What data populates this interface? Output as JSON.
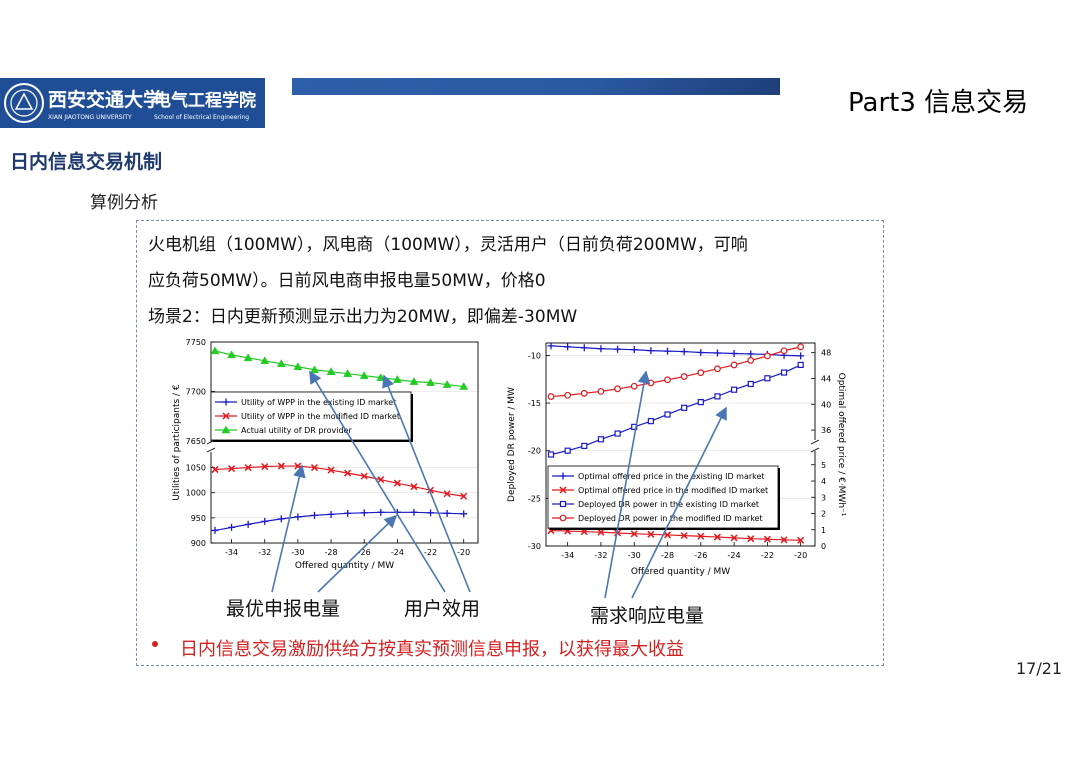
{
  "logo": {
    "name_cn": "西安交通大学",
    "university_en": "XIAN JIAOTONG UNIVERSITY",
    "school_cn": "电气工程学院",
    "school_en": "School of Electrical Engineering"
  },
  "header": {
    "part_title": "Part3 信息交易"
  },
  "section_title": "日内信息交易机制",
  "subheading": "算例分析",
  "scenario": {
    "line1": "火电机组（100MW），风电商（100MW），灵活用户（日前负荷200MW，可响",
    "line2": "应负荷50MW）。日前风电商申报电量50MW，价格0",
    "line3": "场景2：日内更新预测显示出力为20MW，即偏差-30MW"
  },
  "annotations": {
    "optimal_bid": "最优申报电量",
    "utility": "用户效用",
    "dr_power": "需求响应电量"
  },
  "conclusion": "日内信息交易激励供给方按真实预测信息申报，以获得最大收益",
  "page_number": "17/21",
  "colors": {
    "brand_blue": "#1f4e96",
    "bullet_red": "#d62020",
    "arrow": "#4a77b4"
  },
  "chart_data": [
    {
      "type": "line",
      "xlabel": "Offered quantity / MW",
      "ylabel": "Utilities of participants / €",
      "x": [
        -35,
        -34,
        -33,
        -32,
        -31,
        -30,
        -29,
        -28,
        -27,
        -26,
        -25,
        -24,
        -23,
        -22,
        -21,
        -20
      ],
      "xticks": [
        "-34",
        "-32",
        "-30",
        "-28",
        "-26",
        "-24",
        "-22",
        "-20"
      ],
      "upper_yticks": [
        "7750",
        "7700",
        "7650"
      ],
      "upper_ylim": [
        7650,
        7750
      ],
      "lower_yticks": [
        "1050",
        "1000",
        "950",
        "900"
      ],
      "lower_ylim": [
        900,
        1075
      ],
      "series": [
        {
          "name": "Utility of WPP in the existing ID market",
          "axis": "lower",
          "color": "#1a1ac8",
          "marker": "plus",
          "values": [
            925,
            931,
            937,
            943,
            948,
            952,
            955,
            957,
            959,
            960,
            961,
            961,
            961,
            960,
            959,
            958
          ]
        },
        {
          "name": "Utility of WPP in the modified ID market",
          "axis": "lower",
          "color": "#e0191e",
          "marker": "x",
          "values": [
            1046,
            1048,
            1050,
            1052,
            1053,
            1053,
            1050,
            1045,
            1039,
            1033,
            1026,
            1019,
            1012,
            1005,
            998,
            993
          ]
        },
        {
          "name": "Actual utility of DR provider",
          "axis": "upper",
          "color": "#22cc22",
          "marker": "triangle",
          "values": [
            7741,
            7737,
            7734,
            7731,
            7728,
            7725,
            7722,
            7720,
            7718,
            7716,
            7714,
            7712,
            7710,
            7709,
            7707,
            7705
          ]
        }
      ]
    },
    {
      "type": "line",
      "xlabel": "Offered quantity / MW",
      "ylabel": "Deployed DR power / MW",
      "y2label": "Optimal offered price / €·MWh⁻¹",
      "x": [
        -35,
        -34,
        -33,
        -32,
        -31,
        -30,
        -29,
        -28,
        -27,
        -26,
        -25,
        -24,
        -23,
        -22,
        -21,
        -20
      ],
      "xticks": [
        "-34",
        "-32",
        "-30",
        "-28",
        "-26",
        "-24",
        "-22",
        "-20"
      ],
      "yticks": [
        "-10",
        "-15",
        "-20",
        "-25",
        "-30"
      ],
      "ylim": [
        -30,
        -8.7
      ],
      "y2_upper_ticks": [
        "48",
        "44",
        "40",
        "36"
      ],
      "y2_upper_ylim": [
        34,
        49.5
      ],
      "y2_lower_ticks": [
        "5",
        "4",
        "3",
        "2",
        "1",
        "0"
      ],
      "y2_lower_ylim": [
        0,
        5.6
      ],
      "series": [
        {
          "name": "Optimal offered price in the existing ID market",
          "axis": "y2_lower",
          "color": "#1a1ac8",
          "marker": "plus",
          "values": [
            -9.0,
            -9.1,
            -9.2,
            -9.3,
            -9.35,
            -9.4,
            -9.5,
            -9.55,
            -9.6,
            -9.7,
            -9.75,
            -9.8,
            -9.85,
            -9.9,
            -10.0,
            -10.05
          ],
          "values_axis": "y"
        },
        {
          "name": "Optimal offered price in the modified ID market",
          "axis": "y2_lower",
          "color": "#e0191e",
          "marker": "x",
          "values": [
            0.95,
            0.92,
            0.88,
            0.85,
            0.8,
            0.75,
            0.72,
            0.68,
            0.64,
            0.6,
            0.55,
            0.5,
            0.45,
            0.42,
            0.38,
            0.35
          ]
        },
        {
          "name": "Deployed DR power in the existing ID market",
          "axis": "y",
          "color": "#1a1ac8",
          "marker": "square",
          "values": [
            -20.4,
            -20.0,
            -19.5,
            -18.8,
            -18.2,
            -17.5,
            -16.9,
            -16.2,
            -15.5,
            -14.9,
            -14.3,
            -13.6,
            -13.0,
            -12.4,
            -11.8,
            -11.0
          ]
        },
        {
          "name": "Deployed DR power in the modified ID market",
          "axis": "y2_upper",
          "color": "#e0191e",
          "marker": "circle",
          "values": [
            41.2,
            41.4,
            41.7,
            42.0,
            42.4,
            42.8,
            43.3,
            43.8,
            44.3,
            44.9,
            45.5,
            46.1,
            46.8,
            47.5,
            48.3,
            48.9
          ]
        }
      ]
    }
  ]
}
